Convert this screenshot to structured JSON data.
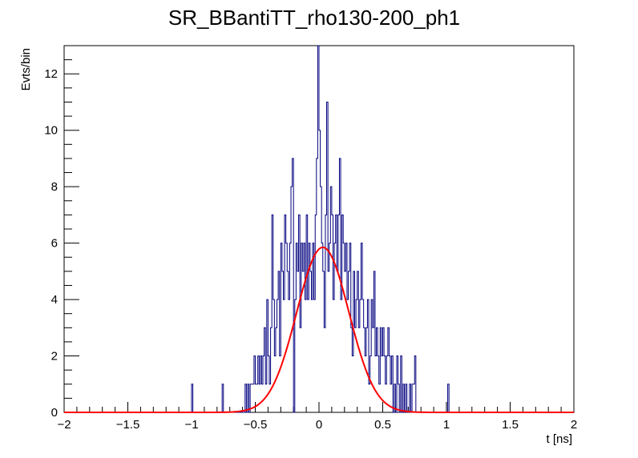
{
  "chart_data": {
    "type": "histogram",
    "title": "SR_BBantiTT_rho130-200_ph1",
    "xlabel": "t [ns]",
    "ylabel": "Evts/bin",
    "xlim": [
      -2,
      2
    ],
    "ylim": [
      0,
      13
    ],
    "xticks": [
      "−2",
      "−1.5",
      "−1",
      "−0.5",
      "0",
      "0.5",
      "1",
      "1.5",
      "2"
    ],
    "yticks": [
      "0",
      "2",
      "4",
      "6",
      "8",
      "10",
      "12"
    ],
    "bin_width": 0.01,
    "histogram": {
      "color": "#00007f",
      "bins": [
        {
          "x": -1.0,
          "y": 1
        },
        {
          "x": -0.76,
          "y": 1
        },
        {
          "x": -0.58,
          "y": 1
        },
        {
          "x": -0.56,
          "y": 1
        },
        {
          "x": -0.54,
          "y": 1
        },
        {
          "x": -0.53,
          "y": 1
        },
        {
          "x": -0.52,
          "y": 1
        },
        {
          "x": -0.51,
          "y": 2
        },
        {
          "x": -0.5,
          "y": 1
        },
        {
          "x": -0.49,
          "y": 1
        },
        {
          "x": -0.48,
          "y": 2
        },
        {
          "x": -0.47,
          "y": 1
        },
        {
          "x": -0.46,
          "y": 2
        },
        {
          "x": -0.45,
          "y": 1
        },
        {
          "x": -0.44,
          "y": 2
        },
        {
          "x": -0.43,
          "y": 3
        },
        {
          "x": -0.42,
          "y": 1
        },
        {
          "x": -0.41,
          "y": 4
        },
        {
          "x": -0.4,
          "y": 2
        },
        {
          "x": -0.39,
          "y": 1
        },
        {
          "x": -0.38,
          "y": 3
        },
        {
          "x": -0.37,
          "y": 7
        },
        {
          "x": -0.36,
          "y": 4
        },
        {
          "x": -0.35,
          "y": 2
        },
        {
          "x": -0.34,
          "y": 3
        },
        {
          "x": -0.33,
          "y": 4
        },
        {
          "x": -0.32,
          "y": 5
        },
        {
          "x": -0.31,
          "y": 2
        },
        {
          "x": -0.3,
          "y": 6
        },
        {
          "x": -0.29,
          "y": 5
        },
        {
          "x": -0.28,
          "y": 4
        },
        {
          "x": -0.27,
          "y": 7
        },
        {
          "x": -0.26,
          "y": 6
        },
        {
          "x": -0.25,
          "y": 5
        },
        {
          "x": -0.24,
          "y": 4
        },
        {
          "x": -0.23,
          "y": 6
        },
        {
          "x": -0.22,
          "y": 8
        },
        {
          "x": -0.21,
          "y": 9
        },
        {
          "x": -0.2,
          "y": 0
        },
        {
          "x": -0.19,
          "y": 4
        },
        {
          "x": -0.18,
          "y": 6
        },
        {
          "x": -0.17,
          "y": 5
        },
        {
          "x": -0.16,
          "y": 7
        },
        {
          "x": -0.15,
          "y": 3
        },
        {
          "x": -0.14,
          "y": 6
        },
        {
          "x": -0.13,
          "y": 5
        },
        {
          "x": -0.12,
          "y": 6
        },
        {
          "x": -0.11,
          "y": 4
        },
        {
          "x": -0.1,
          "y": 7
        },
        {
          "x": -0.09,
          "y": 4
        },
        {
          "x": -0.08,
          "y": 6
        },
        {
          "x": -0.07,
          "y": 5
        },
        {
          "x": -0.06,
          "y": 4
        },
        {
          "x": -0.05,
          "y": 6
        },
        {
          "x": -0.04,
          "y": 4
        },
        {
          "x": -0.03,
          "y": 7
        },
        {
          "x": -0.02,
          "y": 9
        },
        {
          "x": -0.01,
          "y": 13
        },
        {
          "x": 0.0,
          "y": 10
        },
        {
          "x": 0.01,
          "y": 8
        },
        {
          "x": 0.02,
          "y": 6
        },
        {
          "x": 0.03,
          "y": 5
        },
        {
          "x": 0.04,
          "y": 3
        },
        {
          "x": 0.05,
          "y": 7
        },
        {
          "x": 0.06,
          "y": 11
        },
        {
          "x": 0.07,
          "y": 5
        },
        {
          "x": 0.08,
          "y": 6
        },
        {
          "x": 0.09,
          "y": 8
        },
        {
          "x": 0.1,
          "y": 7
        },
        {
          "x": 0.11,
          "y": 4
        },
        {
          "x": 0.12,
          "y": 6
        },
        {
          "x": 0.13,
          "y": 7
        },
        {
          "x": 0.14,
          "y": 5
        },
        {
          "x": 0.15,
          "y": 7
        },
        {
          "x": 0.16,
          "y": 9
        },
        {
          "x": 0.17,
          "y": 4
        },
        {
          "x": 0.18,
          "y": 7
        },
        {
          "x": 0.19,
          "y": 6
        },
        {
          "x": 0.2,
          "y": 5
        },
        {
          "x": 0.21,
          "y": 6
        },
        {
          "x": 0.22,
          "y": 4
        },
        {
          "x": 0.23,
          "y": 5
        },
        {
          "x": 0.24,
          "y": 6
        },
        {
          "x": 0.25,
          "y": 3
        },
        {
          "x": 0.26,
          "y": 2
        },
        {
          "x": 0.27,
          "y": 5
        },
        {
          "x": 0.28,
          "y": 3
        },
        {
          "x": 0.29,
          "y": 4
        },
        {
          "x": 0.3,
          "y": 5
        },
        {
          "x": 0.31,
          "y": 3
        },
        {
          "x": 0.32,
          "y": 4
        },
        {
          "x": 0.33,
          "y": 6
        },
        {
          "x": 0.34,
          "y": 4
        },
        {
          "x": 0.35,
          "y": 3
        },
        {
          "x": 0.36,
          "y": 2
        },
        {
          "x": 0.37,
          "y": 3
        },
        {
          "x": 0.38,
          "y": 4
        },
        {
          "x": 0.39,
          "y": 1
        },
        {
          "x": 0.4,
          "y": 2
        },
        {
          "x": 0.41,
          "y": 4
        },
        {
          "x": 0.42,
          "y": 3
        },
        {
          "x": 0.43,
          "y": 5
        },
        {
          "x": 0.44,
          "y": 2
        },
        {
          "x": 0.45,
          "y": 3
        },
        {
          "x": 0.46,
          "y": 2
        },
        {
          "x": 0.47,
          "y": 1
        },
        {
          "x": 0.48,
          "y": 3
        },
        {
          "x": 0.49,
          "y": 2
        },
        {
          "x": 0.5,
          "y": 3
        },
        {
          "x": 0.51,
          "y": 2
        },
        {
          "x": 0.52,
          "y": 1
        },
        {
          "x": 0.53,
          "y": 2
        },
        {
          "x": 0.54,
          "y": 3
        },
        {
          "x": 0.55,
          "y": 2
        },
        {
          "x": 0.56,
          "y": 1
        },
        {
          "x": 0.57,
          "y": 2
        },
        {
          "x": 0.59,
          "y": 1
        },
        {
          "x": 0.61,
          "y": 2
        },
        {
          "x": 0.62,
          "y": 1
        },
        {
          "x": 0.64,
          "y": 2
        },
        {
          "x": 0.66,
          "y": 1
        },
        {
          "x": 0.68,
          "y": 1
        },
        {
          "x": 0.71,
          "y": 1
        },
        {
          "x": 0.73,
          "y": 1
        },
        {
          "x": 0.74,
          "y": 1
        },
        {
          "x": 0.75,
          "y": 2
        },
        {
          "x": 1.01,
          "y": 1
        }
      ]
    },
    "fit": {
      "type": "gaussian",
      "color": "#ff0000",
      "amplitude": 5.85,
      "mean": 0.03,
      "sigma": 0.205
    }
  }
}
